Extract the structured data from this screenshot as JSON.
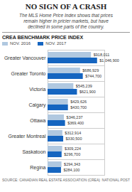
{
  "chart_data": {
    "type": "bar",
    "orientation": "horizontal",
    "title": "NO SIGN OF A CRASH",
    "subtitle": "The MLS Home Price Index shows that prices\nremain higher in pricier markets, but have\ndeclined in some parts of the country.",
    "annotations": [
      "CREA BENCHMARK PRICE INDEX",
      "SOURCE: CANADIAN REAL ESTATE ASSOCIATION (CREA)",
      "NATIONAL POST"
    ],
    "categories": [
      "Regina",
      "Saskatoon",
      "Greater Montreal",
      "Ottawa",
      "Calgary",
      "Victoria",
      "Greater Toronto",
      "Greater Vancouver"
    ],
    "series": [
      {
        "name": "NOV. 2016",
        "color": "#b0c8e0",
        "values": [
          294343,
          309224,
          312914,
          346237,
          429626,
          545239,
          686929,
          918011
        ],
        "value_labels": [
          "$294,343",
          "$309,224",
          "$312,914",
          "$346,237",
          "$429,626",
          "$545,239",
          "$686,929",
          "$918,011"
        ]
      },
      {
        "name": "NOV. 2017",
        "color": "#1565c0",
        "values": [
          284100,
          296700,
          330500,
          369400,
          430700,
          621900,
          744700,
          1046900
        ],
        "value_labels": [
          "$284,100",
          "$296,700",
          "$330,500",
          "$369,400",
          "$430,700",
          "$621,900",
          "$744,700",
          "$1,046,900"
        ]
      }
    ],
    "xlim": [
      0,
      1200000
    ],
    "data_labels": true,
    "tick_labels": "y",
    "legend": "top",
    "grid": false
  }
}
